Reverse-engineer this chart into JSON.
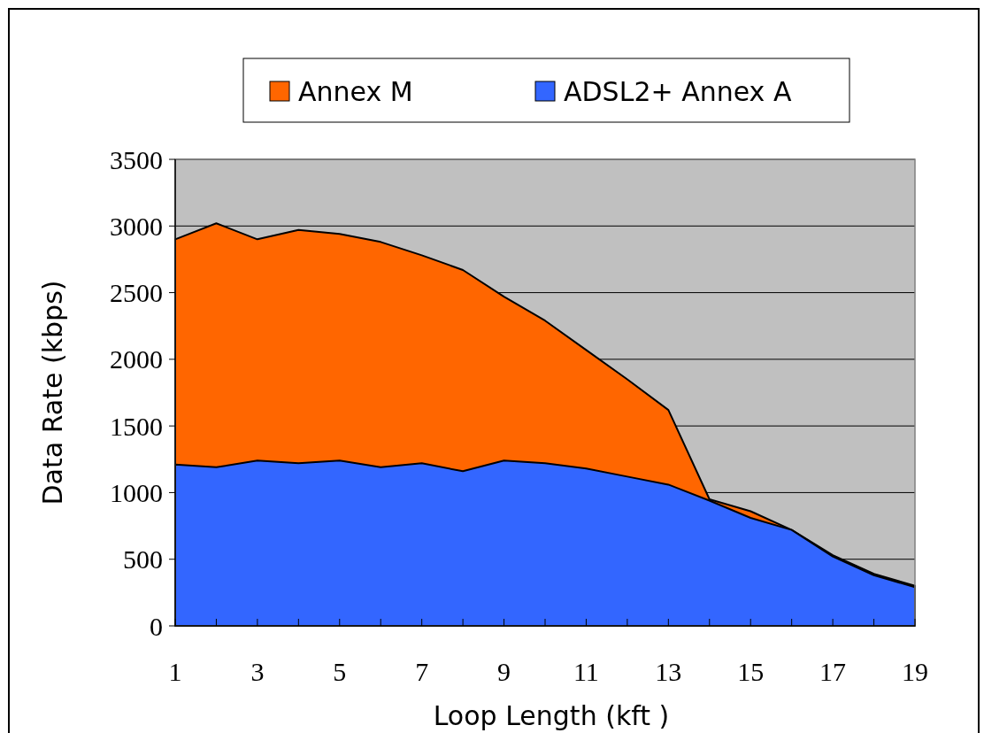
{
  "chart_data": {
    "type": "area",
    "xlabel": "Loop Length (kft )",
    "ylabel": "Data Rate (kbps)",
    "x": [
      1,
      2,
      3,
      4,
      5,
      6,
      7,
      8,
      9,
      10,
      11,
      12,
      13,
      14,
      15,
      16,
      17,
      18,
      19
    ],
    "series": [
      {
        "name": "Annex M",
        "color": "#ff6600",
        "values": [
          2900,
          3020,
          2900,
          2970,
          2940,
          2880,
          2780,
          2670,
          2470,
          2290,
          2070,
          1850,
          1620,
          950,
          860,
          720,
          530,
          390,
          300
        ]
      },
      {
        "name": "ADSL2+ Annex A",
        "color": "#3366ff",
        "values": [
          1210,
          1190,
          1240,
          1220,
          1240,
          1190,
          1220,
          1160,
          1240,
          1220,
          1180,
          1120,
          1060,
          940,
          810,
          720,
          520,
          380,
          290
        ]
      }
    ],
    "xlim": [
      1,
      19
    ],
    "xticks": [
      1,
      {
        "value": 2,
        "label": null
      },
      3,
      {
        "value": 4,
        "label": null
      },
      5,
      {
        "value": 6,
        "label": null
      },
      7,
      {
        "value": 8,
        "label": null
      },
      9,
      {
        "value": 10,
        "label": null
      },
      11,
      {
        "value": 12,
        "label": null
      },
      13,
      {
        "value": 14,
        "label": null
      },
      15,
      {
        "value": 16,
        "label": null
      },
      17,
      {
        "value": 18,
        "label": null
      },
      19
    ],
    "ylim": [
      0,
      3500
    ],
    "yticks": [
      0,
      500,
      1000,
      1500,
      2000,
      2500,
      3000,
      3500
    ],
    "grid": "y",
    "legend": "top",
    "marker": "none"
  }
}
